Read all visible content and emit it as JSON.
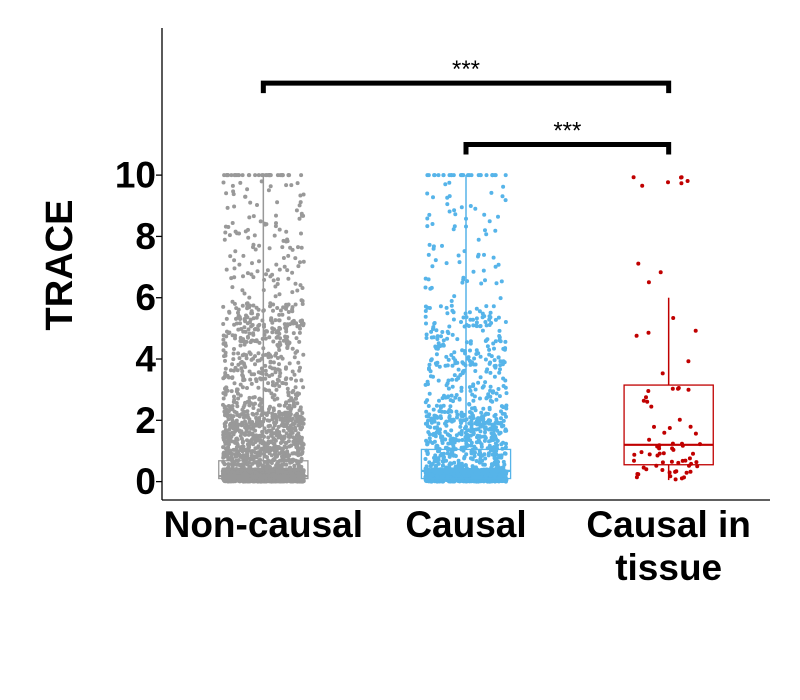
{
  "chart_data": {
    "type": "boxplot",
    "ylabel": "TRACE",
    "ylim": [
      -0.6,
      14.8
    ],
    "yticks": [
      0,
      2,
      4,
      6,
      8,
      10
    ],
    "categories": [
      {
        "label_lines": [
          "Non-causal"
        ],
        "color": "#999999",
        "q1": 0.1,
        "median": 0.18,
        "q3": 0.68,
        "whisker_low": 0,
        "whisker_high": 10,
        "n_points": 3000,
        "scatter_width": 0.4
      },
      {
        "label_lines": [
          "Causal"
        ],
        "color": "#56B4E9",
        "q1": 0.1,
        "median": 0.35,
        "q3": 1.05,
        "whisker_low": 0,
        "whisker_high": 10,
        "n_points": 2000,
        "scatter_width": 0.4
      },
      {
        "label_lines": [
          "Causal in",
          "tissue"
        ],
        "color": "#C00000",
        "q1": 0.55,
        "median": 1.2,
        "q3": 3.15,
        "whisker_low": 0.05,
        "whisker_high": 6.0,
        "n_points": 75,
        "scatter_width": 0.35
      }
    ],
    "significance": [
      {
        "from": 0,
        "to": 2,
        "y": 13.0,
        "label": "***"
      },
      {
        "from": 1,
        "to": 2,
        "y": 11.0,
        "label": "***"
      }
    ]
  }
}
